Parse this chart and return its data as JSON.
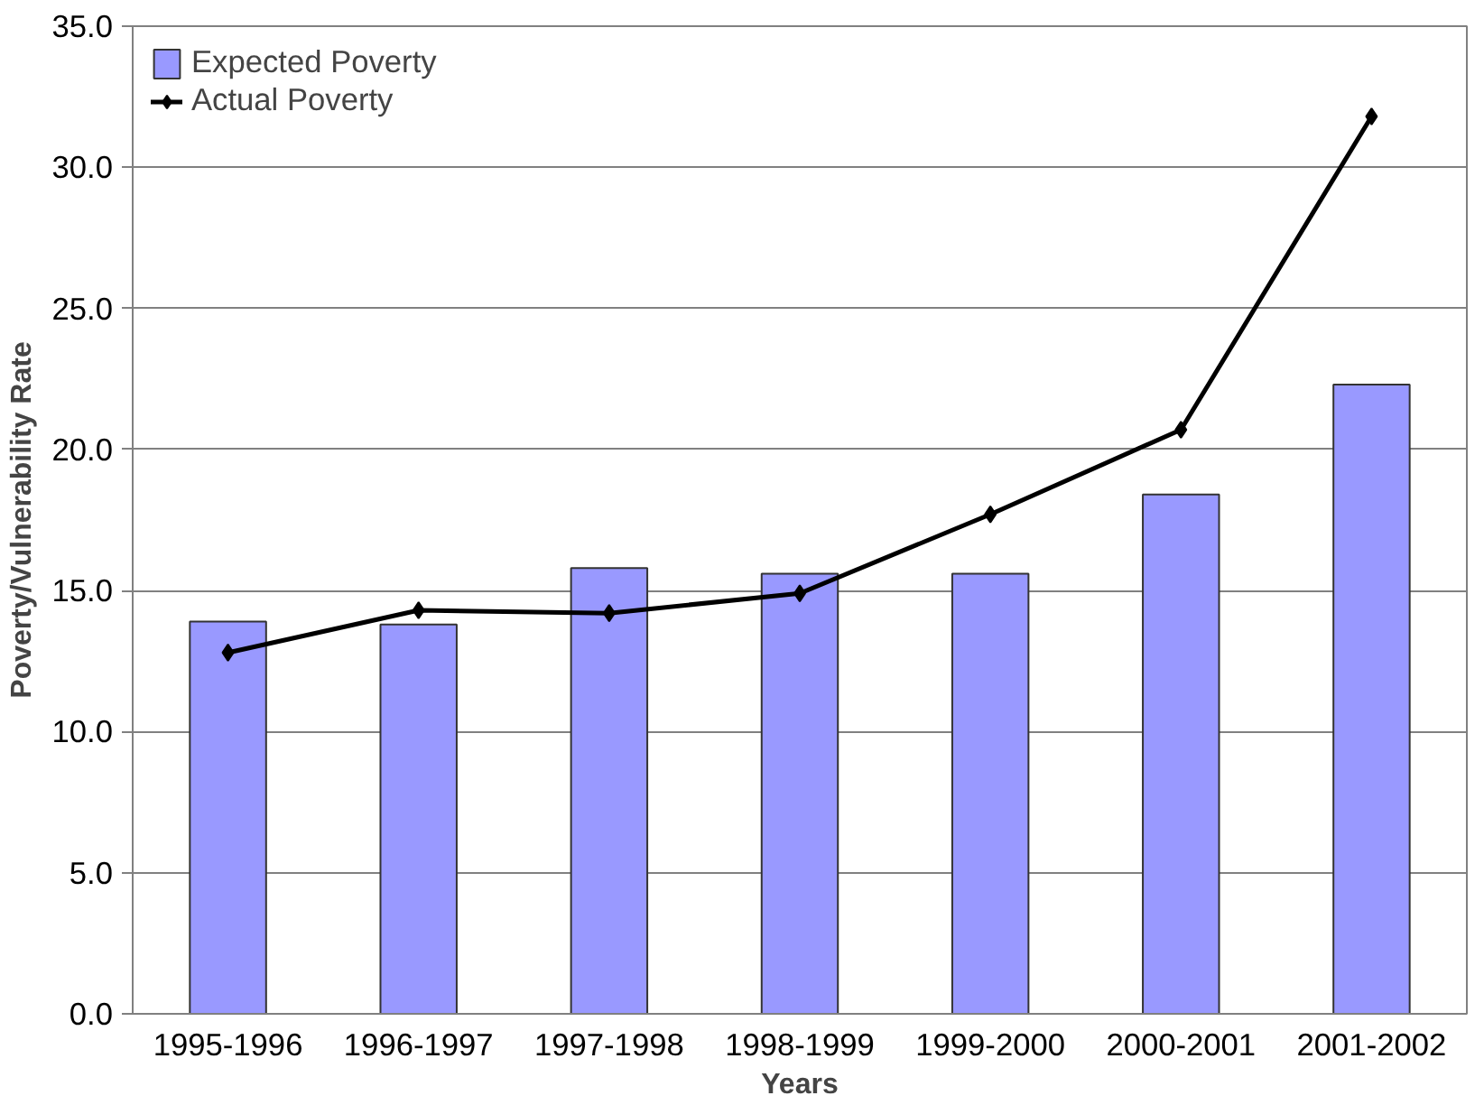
{
  "chart_data": {
    "type": "bar",
    "xlabel": "Years",
    "ylabel": "Poverty/Vulnerability Rate",
    "categories": [
      "1995-1996",
      "1996-1997",
      "1997-1998",
      "1998-1999",
      "1999-2000",
      "2000-2001",
      "2001-2002"
    ],
    "series": [
      {
        "name": "Expected Poverty",
        "color": "#9999ff",
        "values": [
          13.9,
          13.8,
          15.8,
          15.6,
          15.6,
          18.4,
          22.3
        ]
      },
      {
        "name": "Actual Poverty",
        "type": "line",
        "color": "#000000",
        "marker": "diamond",
        "values": [
          12.8,
          14.3,
          14.2,
          14.9,
          17.7,
          20.7,
          31.8
        ]
      }
    ],
    "ylim": [
      0,
      35
    ],
    "yticks": [
      {
        "value": 0,
        "label": "0.0"
      },
      {
        "value": 5,
        "label": "5.0"
      },
      {
        "value": 10,
        "label": "10.0"
      },
      {
        "value": 15,
        "label": "15.0"
      },
      {
        "value": 20,
        "label": "20.0"
      },
      {
        "value": 25,
        "label": "25.0"
      },
      {
        "value": 30,
        "label": "30.0"
      },
      {
        "value": 35,
        "label": "35.0"
      }
    ],
    "grid": "y",
    "legend": "top left"
  }
}
